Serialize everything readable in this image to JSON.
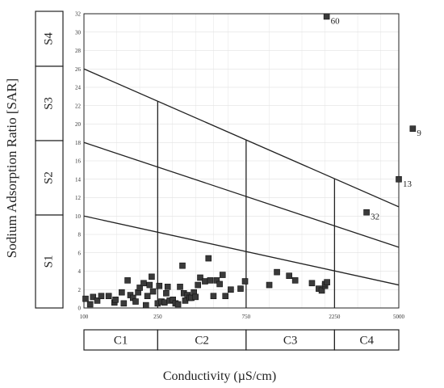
{
  "chart_data": {
    "type": "scatter",
    "title": "",
    "xlabel": "Conductivity (µS/cm)",
    "ylabel": "Sodium Adsorption Ratio [SAR]",
    "x_scale": "log",
    "xlim": [
      100,
      5000
    ],
    "ylim": [
      0,
      32
    ],
    "x_ticks": [
      100,
      250,
      750,
      2250,
      5000
    ],
    "y_ticks": [
      0,
      2,
      4,
      6,
      8,
      10,
      12,
      14,
      16,
      18,
      20,
      22,
      24,
      26,
      28,
      30,
      32
    ],
    "grid": true,
    "salinity_classes": [
      {
        "label": "C1",
        "x_range": [
          100,
          250
        ]
      },
      {
        "label": "C2",
        "x_range": [
          250,
          750
        ]
      },
      {
        "label": "C3",
        "x_range": [
          750,
          2250
        ]
      },
      {
        "label": "C4",
        "x_range": [
          2250,
          5000
        ]
      }
    ],
    "sodium_classes": [
      {
        "label": "S1",
        "note": "below lower line"
      },
      {
        "label": "S2",
        "note": "between lower and middle line"
      },
      {
        "label": "S3",
        "note": "between middle and upper line"
      },
      {
        "label": "S4",
        "note": "above upper line"
      }
    ],
    "boundary_lines": [
      {
        "x": [
          100,
          5000
        ],
        "y": [
          10,
          2.5
        ]
      },
      {
        "x": [
          100,
          5000
        ],
        "y": [
          18,
          6.6
        ]
      },
      {
        "x": [
          100,
          5000
        ],
        "y": [
          26,
          11
        ]
      }
    ],
    "series": [
      {
        "x": [
          102,
          108,
          112,
          118,
          124,
          136,
          146,
          148,
          160,
          164,
          172,
          178,
          184,
          190,
          196,
          200,
          210,
          216,
          220,
          226,
          232,
          236,
          250,
          255,
          262,
          272,
          278,
          283,
          290,
          302,
          312,
          322,
          330,
          340,
          346,
          352,
          362,
          372,
          380,
          392,
          400,
          412,
          424,
          450,
          470,
          480,
          500,
          520,
          540,
          560,
          580,
          620,
          700,
          740,
          1000,
          1100,
          1280,
          1380,
          1700,
          1850,
          1920,
          2000,
          2000,
          2050
        ],
        "y": [
          1.0,
          0.4,
          1.2,
          0.8,
          1.3,
          1.3,
          0.6,
          0.9,
          1.7,
          0.5,
          3.0,
          1.4,
          1.1,
          0.7,
          1.7,
          2.2,
          2.7,
          0.3,
          1.3,
          2.5,
          3.4,
          1.8,
          0.5,
          2.4,
          0.7,
          0.6,
          1.6,
          2.3,
          0.8,
          0.9,
          0.5,
          0.4,
          2.3,
          4.6,
          1.6,
          0.8,
          1.4,
          1.1,
          1.1,
          1.7,
          1.2,
          2.5,
          3.3,
          2.9,
          5.4,
          3.0,
          1.3,
          3.0,
          2.6,
          3.6,
          1.3,
          2.0,
          2.1,
          2.9,
          2.5,
          3.9,
          3.5,
          3.0,
          2.7,
          2.1,
          1.9,
          2.4,
          2.6,
          2.8
        ],
        "labels": []
      },
      {
        "x": [
          2040,
          3350,
          5950,
          5000
        ],
        "y": [
          31.7,
          10.4,
          19.5,
          14.0
        ],
        "labels": [
          "60",
          "32",
          "9",
          "13"
        ]
      }
    ]
  }
}
